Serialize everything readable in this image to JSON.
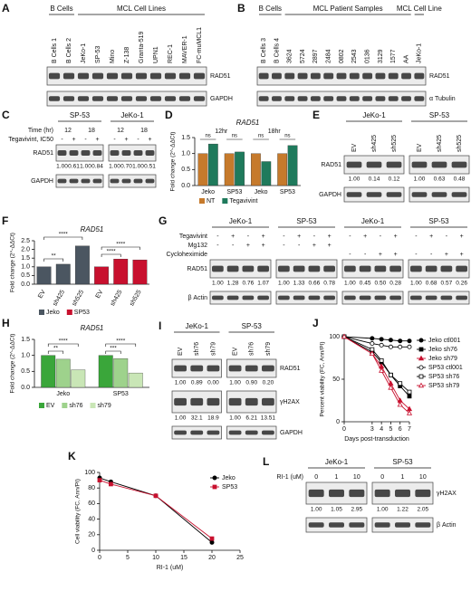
{
  "blots": [
    {
      "panel": "A",
      "groups": [
        {
          "label": "B Cells",
          "lanes": [
            "B Cells 1",
            "B Cells 2"
          ]
        },
        {
          "label": "MCL Cell Lines",
          "lanes": [
            "JeKo-1",
            "SP-53",
            "Mino",
            "Z-138",
            "Granta-519",
            "UPN1",
            "REC-1",
            "MAVER-1",
            "FC-muMCL1"
          ]
        }
      ],
      "bands": [
        {
          "label": "RAD51"
        },
        {
          "label": "GAPDH"
        }
      ]
    },
    {
      "panel": "B",
      "groups": [
        {
          "label": "B Cells",
          "lanes": [
            "B Cells 3",
            "B Cells 4"
          ]
        },
        {
          "label": "MCL Patient Samples",
          "lanes": [
            "3624",
            "5724",
            "2897",
            "2484",
            "0802",
            "2543",
            "0136",
            "3129",
            "1577",
            "AA"
          ]
        },
        {
          "label": "MCL Cell Line",
          "lanes": [
            "JeKo-1"
          ]
        }
      ],
      "bands": [
        {
          "label": "RAD51"
        },
        {
          "label": "α Tubulin"
        }
      ]
    },
    {
      "panel": "C",
      "groups": [
        {
          "label": "SP-53"
        },
        {
          "label": "JeKo-1"
        }
      ],
      "rows": [
        {
          "label": "Time (hr)",
          "cells": [
            [
              "12",
              "18"
            ],
            [
              "12",
              "18"
            ]
          ]
        },
        {
          "label": "Tegavivint, IC50",
          "cells": [
            [
              "-",
              "+",
              "-",
              "+"
            ],
            [
              "-",
              "+",
              "-",
              "+"
            ]
          ]
        }
      ],
      "bands": [
        {
          "label": "RAD51",
          "quant": [
            [
              "1.00",
              "0.61",
              "1.00",
              "0.84"
            ],
            [
              "1.00",
              "0.70",
              "1.00",
              "0.51"
            ]
          ]
        },
        {
          "label": "GAPDH"
        }
      ]
    },
    {
      "panel": "E",
      "groups": [
        {
          "label": "JeKo-1",
          "lanes": [
            "EV",
            "sh425",
            "sh525"
          ]
        },
        {
          "label": "SP-53",
          "lanes": [
            "EV",
            "sh425",
            "sh525"
          ]
        }
      ],
      "bands": [
        {
          "label": "RAD51",
          "quant": [
            [
              "1.00",
              "0.14",
              "0.12"
            ],
            [
              "1.00",
              "0.63",
              "0.48"
            ]
          ]
        },
        {
          "label": "GAPDH"
        }
      ]
    },
    {
      "panel": "G",
      "groups": [
        {
          "label": "JeKo-1"
        },
        {
          "label": "SP-53"
        },
        {
          "label": "JeKo-1"
        },
        {
          "label": "SP-53"
        }
      ],
      "rows": [
        {
          "label": "Tegavivint",
          "cells": [
            [
              "-",
              "+",
              "-",
              "+"
            ],
            [
              "-",
              "+",
              "-",
              "+"
            ],
            [
              "-",
              "+",
              "-",
              "+"
            ],
            [
              "-",
              "+",
              "-",
              "+"
            ]
          ]
        },
        {
          "label": "Mg132",
          "cells": [
            [
              "-",
              "-",
              "+",
              "+"
            ],
            [
              "-",
              "-",
              "+",
              "+"
            ],
            [],
            []
          ]
        },
        {
          "label": "Cycloheximide",
          "cells": [
            [],
            [],
            [
              "-",
              "-",
              "+",
              "+"
            ],
            [
              "-",
              "-",
              "+",
              "+"
            ]
          ]
        }
      ],
      "bands": [
        {
          "label": "RAD51",
          "quant": [
            [
              "1.00",
              "1.28",
              "0.76",
              "1.07"
            ],
            [
              "1.00",
              "1.33",
              "0.66",
              "0.78"
            ],
            [
              "1.00",
              "0.45",
              "0.50",
              "0.28"
            ],
            [
              "1.00",
              "0.68",
              "0.57",
              "0.26"
            ]
          ]
        },
        {
          "label": "β Actin"
        }
      ]
    },
    {
      "panel": "I",
      "groups": [
        {
          "label": "JeKo-1",
          "lanes": [
            "EV",
            "sh76",
            "sh79"
          ]
        },
        {
          "label": "SP-53",
          "lanes": [
            "EV",
            "sh76",
            "sh79"
          ]
        }
      ],
      "bands": [
        {
          "label": "RAD51",
          "quant": [
            [
              "1.00",
              "0.89",
              "0.00"
            ],
            [
              "1.00",
              "0.90",
              "0.20"
            ]
          ]
        },
        {
          "label": "γH2AX",
          "quant": [
            [
              "1.00",
              "32.1",
              "18.9"
            ],
            [
              "1.00",
              "6.21",
              "13.51"
            ]
          ]
        },
        {
          "label": "GAPDH"
        }
      ]
    },
    {
      "panel": "L",
      "groups": [
        {
          "label": "JeKo-1"
        },
        {
          "label": "SP-53"
        }
      ],
      "rows": [
        {
          "label": "RI-1 (uM)",
          "cells": [
            [
              "0",
              "1",
              "10"
            ],
            [
              "0",
              "1",
              "10"
            ]
          ]
        }
      ],
      "bands": [
        {
          "label": "γH2AX",
          "quant": [
            [
              "1.00",
              "1.05",
              "2.95"
            ],
            [
              "1.00",
              "1.22",
              "2.05"
            ]
          ]
        },
        {
          "label": "β Actin"
        }
      ]
    }
  ],
  "chart_data": [
    {
      "panel": "D",
      "type": "bar",
      "title": "RAD51",
      "ylabel": "Fold change (2^-ΔΔCt)",
      "group_labels": [
        "12hr",
        "18hr"
      ],
      "categories": [
        "Jeko",
        "SP53",
        "Jeko",
        "SP53"
      ],
      "series": [
        {
          "name": "NT",
          "color": "#c67a2c",
          "values": [
            1.0,
            1.0,
            1.0,
            1.0
          ]
        },
        {
          "name": "Tegavivint",
          "color": "#1f7a5c",
          "values": [
            1.3,
            1.05,
            0.75,
            1.25
          ]
        }
      ],
      "significance": [
        "ns",
        "ns",
        "ns",
        "ns"
      ],
      "ylim": [
        0,
        1.5
      ],
      "yticks": [
        {
          "value": 0,
          "label": "0.0"
        },
        {
          "value": 0.5,
          "label": "0.5"
        },
        {
          "value": 1,
          "label": "1.0"
        },
        {
          "value": 1.5,
          "label": "1.5"
        }
      ]
    },
    {
      "panel": "F",
      "type": "bar",
      "title": "RAD51",
      "ylabel": "Fold change (2^-ΔΔCt)",
      "categories": [
        "EV",
        "sh425",
        "sh525",
        "EV",
        "sh425",
        "sh525"
      ],
      "series": [
        {
          "name": "Jeko",
          "color": "#4b5661",
          "values": [
            1.0,
            1.15,
            2.2,
            null,
            null,
            null
          ]
        },
        {
          "name": "SP53",
          "color": "#c8102e",
          "values": [
            null,
            null,
            null,
            1.0,
            1.45,
            1.4
          ]
        }
      ],
      "significance": [
        "**",
        "****",
        "****",
        "****"
      ],
      "ylim": [
        0,
        2.5
      ],
      "yticks": [
        {
          "value": 0,
          "label": "0.0"
        },
        {
          "value": 0.5,
          "label": "0.5"
        },
        {
          "value": 1,
          "label": "1.0"
        },
        {
          "value": 1.5,
          "label": "1.5"
        },
        {
          "value": 2,
          "label": "2.0"
        },
        {
          "value": 2.5,
          "label": "2.5"
        }
      ]
    },
    {
      "panel": "H",
      "type": "bar",
      "title": "RAD51",
      "ylabel": "Fold change (2^-ΔΔCt)",
      "categories": [
        "Jeko",
        "SP53"
      ],
      "series": [
        {
          "name": "EV",
          "color": "#3aa63a",
          "values": [
            1.0,
            1.0
          ]
        },
        {
          "name": "sh76",
          "color": "#9ed28c",
          "values": [
            0.88,
            0.9
          ]
        },
        {
          "name": "sh79",
          "color": "#c9e6b6",
          "values": [
            0.55,
            0.45
          ]
        }
      ],
      "significance": [
        "**",
        "****",
        "***",
        "****"
      ],
      "ylim": [
        0,
        1.5
      ],
      "yticks": [
        {
          "value": 0,
          "label": "0.0"
        },
        {
          "value": 0.5,
          "label": "0.5"
        },
        {
          "value": 1,
          "label": "1.0"
        },
        {
          "value": 1.5,
          "label": "1.5"
        }
      ]
    },
    {
      "panel": "J",
      "type": "line",
      "ylabel": "Percent viability (FC, Ann/PI)",
      "xlabel": "Days post-transduction",
      "x": [
        0,
        3,
        4,
        5,
        6,
        7
      ],
      "series": [
        {
          "name": "Jeko ctl001",
          "color": "#000000",
          "marker": "circle",
          "filled": true,
          "values": [
            100,
            98,
            97,
            96,
            95,
            95
          ]
        },
        {
          "name": "Jeko sh76",
          "color": "#000000",
          "marker": "square",
          "filled": true,
          "values": [
            100,
            82,
            70,
            55,
            42,
            30
          ]
        },
        {
          "name": "Jeko sh79",
          "color": "#c8102e",
          "marker": "triangle",
          "filled": true,
          "values": [
            100,
            80,
            65,
            45,
            25,
            15
          ]
        },
        {
          "name": "SP53 ctl001",
          "color": "#000000",
          "marker": "circle",
          "filled": false,
          "values": [
            100,
            92,
            90,
            88,
            88,
            88
          ]
        },
        {
          "name": "SP53 sh76",
          "color": "#000000",
          "marker": "square",
          "filled": false,
          "values": [
            100,
            85,
            72,
            55,
            45,
            35
          ]
        },
        {
          "name": "SP53 sh79",
          "color": "#c8102e",
          "marker": "triangle",
          "filled": false,
          "values": [
            100,
            80,
            60,
            40,
            20,
            10
          ]
        }
      ],
      "xlim": [
        0,
        7
      ],
      "xticks": [
        0,
        3,
        4,
        5,
        6,
        7
      ],
      "ylim": [
        0,
        100
      ],
      "yticks": [
        0,
        50,
        100
      ]
    },
    {
      "panel": "K",
      "type": "line",
      "ylabel": "Cell viability (FC, Ann/PI)",
      "xlabel": "RI-1 (uM)",
      "x": [
        0,
        2,
        10,
        20
      ],
      "series": [
        {
          "name": "Jeko",
          "color": "#000000",
          "marker": "circle",
          "filled": true,
          "values": [
            93,
            88,
            70,
            10
          ]
        },
        {
          "name": "SP53",
          "color": "#c8102e",
          "marker": "square",
          "filled": true,
          "values": [
            90,
            85,
            70,
            15
          ]
        }
      ],
      "xlim": [
        0,
        25
      ],
      "xticks": [
        0,
        5,
        10,
        15,
        20,
        25
      ],
      "ylim": [
        0,
        100
      ],
      "yticks": [
        0,
        20,
        40,
        60,
        80,
        100
      ]
    }
  ]
}
